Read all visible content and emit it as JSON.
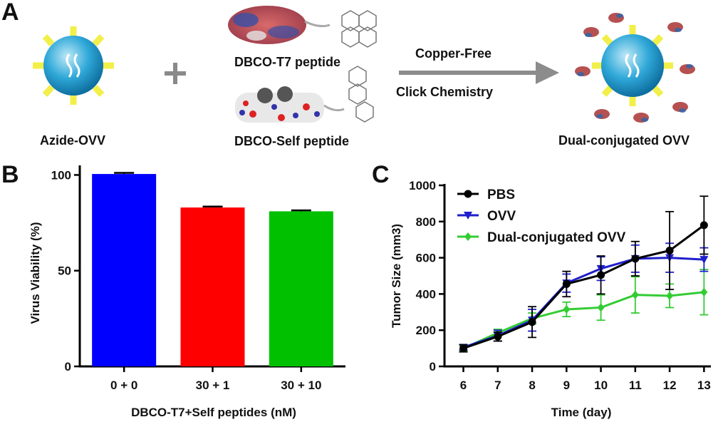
{
  "panels": {
    "a": "A",
    "b": "B",
    "c": "C"
  },
  "schematic": {
    "azide_label": "Azide-OVV",
    "plus": "+",
    "t7_label": "DBCO-T7 peptide",
    "self_label": "DBCO-Self peptide",
    "arrow_top": "Copper-Free",
    "arrow_bottom": "Click Chemistry",
    "product_label": "Dual-conjugated OVV"
  },
  "chart_data": [
    {
      "type": "bar",
      "categories": [
        "0 + 0",
        "30 + 1",
        "30 + 10"
      ],
      "values": [
        100.5,
        83.0,
        81.0
      ],
      "errors": [
        0.6,
        0.5,
        0.5
      ],
      "colors": [
        "#0000ff",
        "#ff0000",
        "#00c000"
      ],
      "xlabel": "DBCO-T7+Self peptides (nM)",
      "ylabel": "Virus Viability (%)",
      "ylim": [
        0,
        105
      ],
      "yticks": [
        0,
        50,
        100
      ]
    },
    {
      "type": "line",
      "x": [
        6,
        7,
        8,
        9,
        10,
        11,
        12,
        13
      ],
      "xlabel": "Time (day)",
      "ylabel": "Tumor Size (mm3)",
      "ylim": [
        0,
        1000
      ],
      "yticks": [
        0,
        200,
        400,
        600,
        800,
        1000
      ],
      "legend_position": "top-left",
      "series": [
        {
          "name": "PBS",
          "color": "#000000",
          "marker": "circle",
          "values": [
            100,
            165,
            245,
            455,
            505,
            595,
            640,
            780
          ],
          "errors": [
            20,
            25,
            85,
            70,
            105,
            95,
            215,
            160
          ]
        },
        {
          "name": "OVV",
          "color": "#1f1fcc",
          "marker": "triangle-down",
          "values": [
            105,
            170,
            255,
            460,
            540,
            595,
            600,
            590
          ],
          "errors": [
            15,
            30,
            60,
            50,
            65,
            75,
            80,
            65
          ]
        },
        {
          "name": "Dual-conjugated OVV",
          "color": "#33cc33",
          "marker": "diamond",
          "values": [
            100,
            185,
            265,
            315,
            325,
            395,
            390,
            410
          ],
          "errors": [
            15,
            20,
            30,
            40,
            70,
            100,
            65,
            125
          ]
        }
      ]
    }
  ]
}
